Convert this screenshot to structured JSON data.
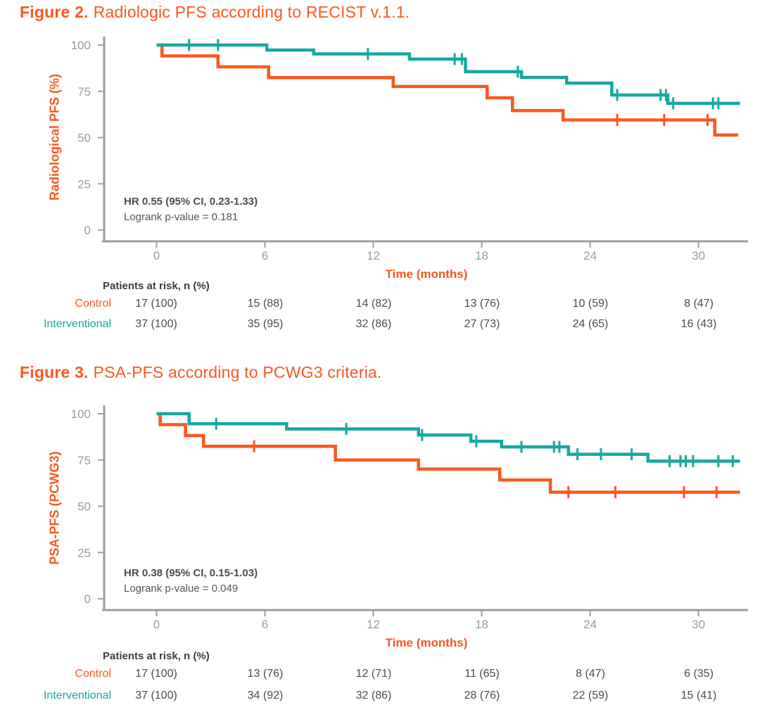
{
  "colors": {
    "orange": "#F9581F",
    "teal": "#16A8A1",
    "axis": "#9C9DA0",
    "tick_text": "#989A9C",
    "annotation_text": "#54555A",
    "risk_header_text": "#3C3D3F",
    "risk_value_text": "#4B4C4E"
  },
  "figures": [
    {
      "title_prefix": "Figure 2.",
      "title_text": "Radiologic PFS according to RECIST v.1.1.",
      "y_axis_label": "Radiological PFS (%)",
      "x_axis_label": "Time (months)",
      "annotation": {
        "hr": "HR 0.55 (95% CI, 0.23-1.33)",
        "logrank": "Logrank p-value = 0.181"
      },
      "risk_table": {
        "header": "Patients at risk, n (%)",
        "time_points": [
          0,
          6,
          12,
          18,
          24,
          30
        ],
        "rows": [
          {
            "label": "Control",
            "values": [
              "17 (100)",
              "15 (88)",
              "14 (82)",
              "13 (76)",
              "10 (59)",
              "8 (47)"
            ]
          },
          {
            "label": "Interventional",
            "values": [
              "37 (100)",
              "35 (95)",
              "32 (86)",
              "27 (73)",
              "24 (65)",
              "16 (43)"
            ]
          }
        ]
      }
    },
    {
      "title_prefix": "Figure 3.",
      "title_text": "PSA-PFS according to PCWG3 criteria.",
      "y_axis_label": "PSA-PFS (PCWG3)",
      "x_axis_label": "Time (months)",
      "annotation": {
        "hr": "HR 0.38 (95% CI, 0.15-1.03)",
        "logrank": "Logrank p-value = 0.049"
      },
      "risk_table": {
        "header": "Patients at risk, n (%)",
        "time_points": [
          0,
          6,
          12,
          18,
          24,
          30
        ],
        "rows": [
          {
            "label": "Control",
            "values": [
              "17 (100)",
              "13 (76)",
              "12 (71)",
              "11 (65)",
              "8 (47)",
              "6 (35)"
            ]
          },
          {
            "label": "Interventional",
            "values": [
              "37 (100)",
              "34 (92)",
              "32 (86)",
              "28 (76)",
              "22 (59)",
              "15 (41)"
            ]
          }
        ]
      }
    }
  ],
  "chart_data": [
    {
      "type": "line",
      "subtype": "kaplan-meier-step",
      "title": "Figure 2. Radiologic PFS according to RECIST v.1.1.",
      "xlabel": "Time (months)",
      "ylabel": "Radiological PFS (%)",
      "xlim": [
        0,
        32.5
      ],
      "ylim": [
        0,
        100
      ],
      "xticks": [
        0,
        6,
        12,
        18,
        24,
        30
      ],
      "yticks": [
        0,
        25,
        50,
        75,
        100
      ],
      "grid": false,
      "legend": "none",
      "series": [
        {
          "name": "Control",
          "color": "#F9581F",
          "start": [
            0,
            100
          ],
          "steps": [
            [
              0.3,
              94.1
            ],
            [
              3.4,
              88.2
            ],
            [
              6.2,
              82.4
            ],
            [
              13.1,
              77.6
            ],
            [
              18.3,
              71.5
            ],
            [
              19.7,
              64.6
            ],
            [
              22.5,
              59.5
            ],
            [
              30.9,
              51.4
            ]
          ],
          "end_month": 32.2,
          "censor_marks": [
            [
              25.5,
              59.5
            ],
            [
              28.1,
              59.5
            ],
            [
              30.5,
              59.5
            ]
          ]
        },
        {
          "name": "Interventional",
          "color": "#16A8A1",
          "start": [
            0,
            100
          ],
          "steps": [
            [
              6.1,
              97.3
            ],
            [
              8.7,
              95.2
            ],
            [
              14.0,
              92.4
            ],
            [
              17.1,
              85.6
            ],
            [
              20.2,
              82.5
            ],
            [
              22.7,
              79.4
            ],
            [
              25.2,
              73.0
            ],
            [
              28.3,
              68.5
            ]
          ],
          "end_month": 32.3,
          "censor_marks": [
            [
              1.8,
              100
            ],
            [
              3.4,
              100
            ],
            [
              11.7,
              95.2
            ],
            [
              16.5,
              92.4
            ],
            [
              16.9,
              92.4
            ],
            [
              20.0,
              85.6
            ],
            [
              25.5,
              73.0
            ],
            [
              27.9,
              73.0
            ],
            [
              28.2,
              73.0
            ],
            [
              28.6,
              68.5
            ],
            [
              30.8,
              68.5
            ],
            [
              31.1,
              68.5
            ]
          ]
        }
      ],
      "annotations": [
        "HR 0.55 (95% CI, 0.23-1.33)",
        "Logrank p-value = 0.181"
      ]
    },
    {
      "type": "line",
      "subtype": "kaplan-meier-step",
      "title": "Figure 3. PSA-PFS according to PCWG3 criteria.",
      "xlabel": "Time (months)",
      "ylabel": "PSA-PFS (PCWG3)",
      "xlim": [
        0,
        32.5
      ],
      "ylim": [
        0,
        100
      ],
      "xticks": [
        0,
        6,
        12,
        18,
        24,
        30
      ],
      "yticks": [
        0,
        25,
        50,
        75,
        100
      ],
      "grid": false,
      "legend": "none",
      "series": [
        {
          "name": "Control",
          "color": "#F9581F",
          "start": [
            0,
            100
          ],
          "steps": [
            [
              0.2,
              94.1
            ],
            [
              1.6,
              88.2
            ],
            [
              2.6,
              82.4
            ],
            [
              9.9,
              75.0
            ],
            [
              14.5,
              70.1
            ],
            [
              19.0,
              64.2
            ],
            [
              21.8,
              57.6
            ]
          ],
          "end_month": 32.3,
          "censor_marks": [
            [
              5.4,
              82.4
            ],
            [
              22.8,
              57.6
            ],
            [
              25.4,
              57.6
            ],
            [
              29.2,
              57.6
            ],
            [
              31.0,
              57.6
            ]
          ]
        },
        {
          "name": "Interventional",
          "color": "#16A8A1",
          "start": [
            0,
            100
          ],
          "steps": [
            [
              1.8,
              94.6
            ],
            [
              7.2,
              91.8
            ],
            [
              14.5,
              88.5
            ],
            [
              17.4,
              85.1
            ],
            [
              19.1,
              82.1
            ],
            [
              22.8,
              78.1
            ],
            [
              27.2,
              74.4
            ]
          ],
          "end_month": 32.3,
          "censor_marks": [
            [
              3.3,
              94.6
            ],
            [
              10.5,
              91.8
            ],
            [
              14.7,
              88.5
            ],
            [
              17.7,
              85.1
            ],
            [
              20.2,
              82.1
            ],
            [
              22.0,
              82.1
            ],
            [
              22.3,
              82.1
            ],
            [
              23.3,
              78.1
            ],
            [
              24.6,
              78.1
            ],
            [
              26.3,
              78.1
            ],
            [
              28.4,
              74.4
            ],
            [
              29.0,
              74.4
            ],
            [
              29.3,
              74.4
            ],
            [
              29.7,
              74.4
            ],
            [
              31.1,
              74.4
            ],
            [
              31.9,
              74.4
            ]
          ]
        }
      ],
      "annotations": [
        "HR 0.38 (95% CI, 0.15-1.03)",
        "Logrank p-value = 0.049"
      ]
    }
  ]
}
